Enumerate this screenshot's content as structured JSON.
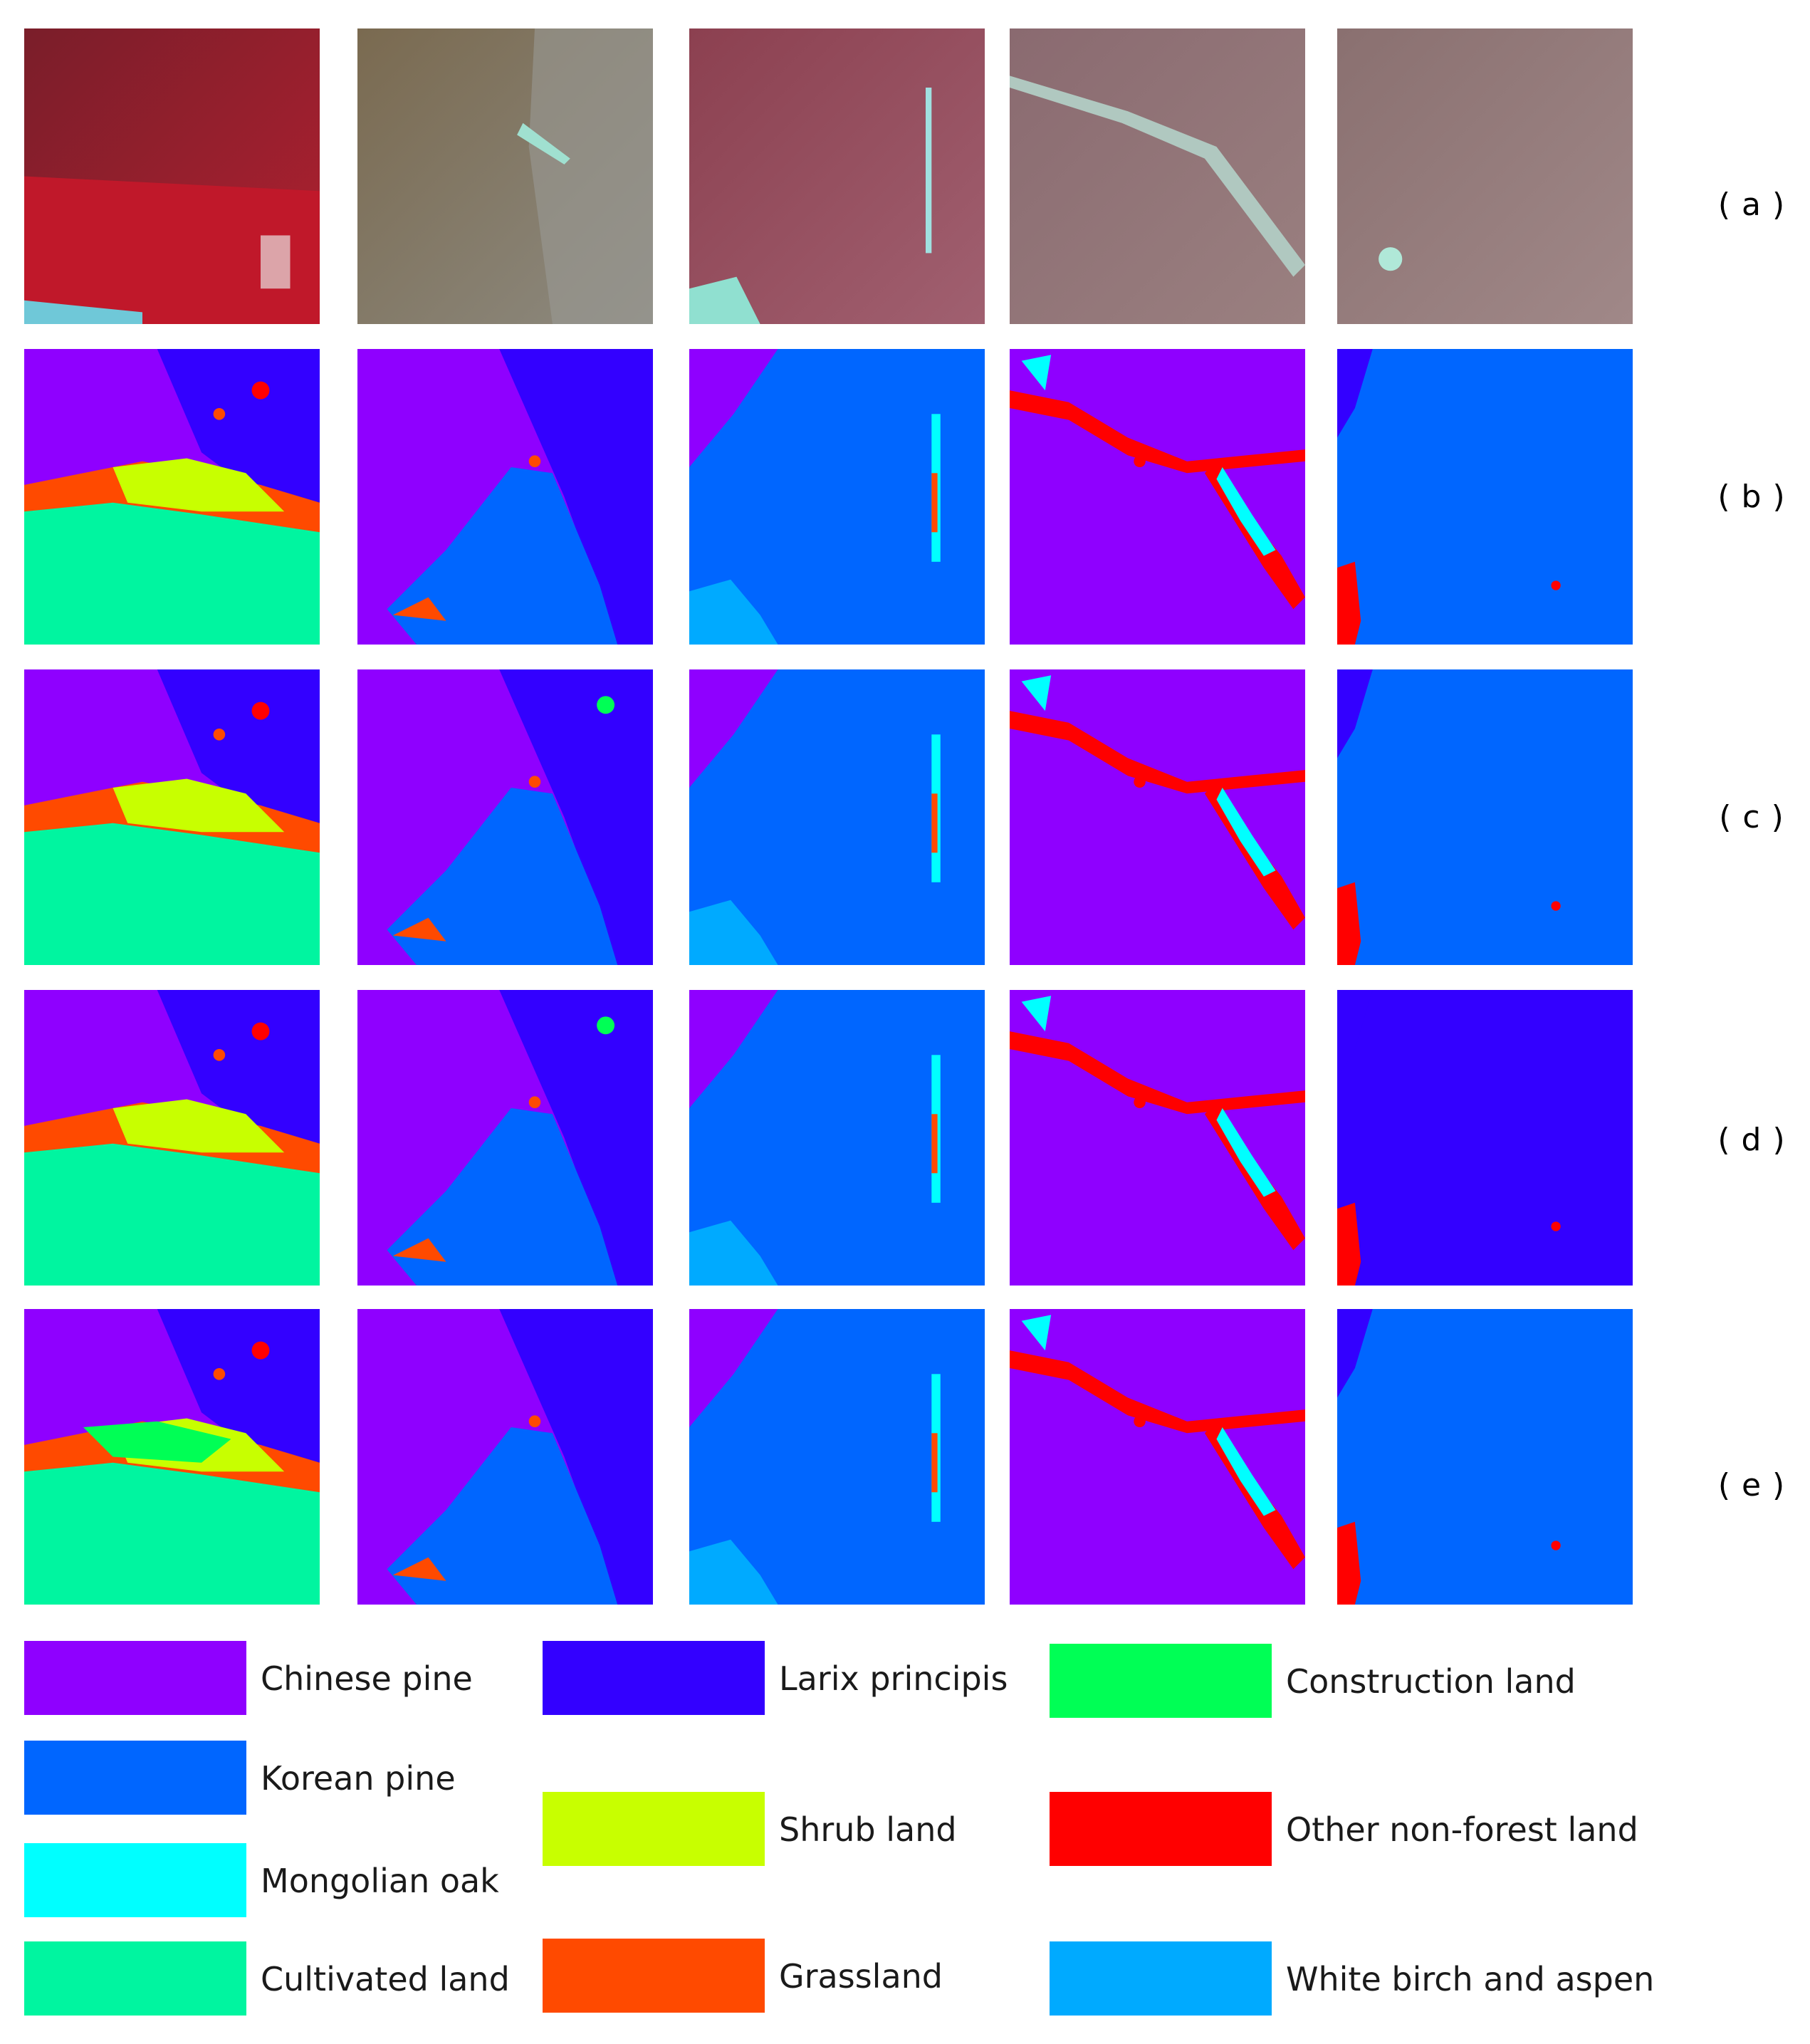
{
  "row_labels": [
    "( a )",
    "( b )",
    "( c )",
    "( d )",
    "( e )"
  ],
  "classes": {
    "chinese_pine": "#8f00ff",
    "larix": "#3300ff",
    "korean_pine": "#0066ff",
    "oak": "#00ffff",
    "cultivated": "#00f5a0",
    "construction": "#00ff55",
    "shrub": "#c8ff00",
    "grassland": "#ff4a00",
    "other": "#ff0000",
    "birch": "#00aaff"
  },
  "legend": [
    {
      "label": "Chinese pine",
      "color": "#8f00ff"
    },
    {
      "label": "Larix principis",
      "color": "#3300ff"
    },
    {
      "label": "Construction land",
      "color": "#00ff55"
    },
    {
      "label": "Korean pine",
      "color": "#0066ff"
    },
    {
      "label": "Shrub land",
      "color": "#c8ff00"
    },
    {
      "label": "Other non-forest land",
      "color": "#ff0000"
    },
    {
      "label": "Mongolian oak",
      "color": "#00ffff"
    },
    {
      "label": "Grassland",
      "color": "#ff4a00"
    },
    {
      "label": "Cultivated land",
      "color": "#00f5a0"
    },
    {
      "label": "White birch and aspen",
      "color": "#00aaff"
    }
  ]
}
